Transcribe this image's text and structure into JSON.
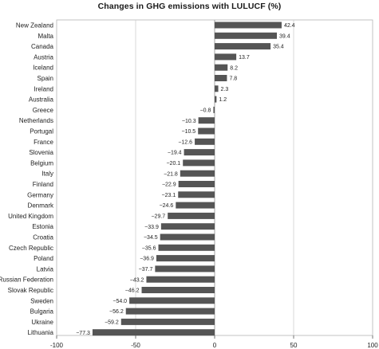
{
  "chart_data": {
    "type": "bar",
    "orientation": "horizontal",
    "title": "Changes in GHG emissions with LULUCF (%)",
    "xlabel": "",
    "ylabel": "",
    "xlim": [
      -100,
      100
    ],
    "xticks": [
      -100,
      -50,
      0,
      50,
      100
    ],
    "grid": true,
    "legend": "none",
    "bar_color": "#555555",
    "categories": [
      "New Zealand",
      "Malta",
      "Canada",
      "Austria",
      "Iceland",
      "Spain",
      "Ireland",
      "Australia",
      "Greece",
      "Netherlands",
      "Portugal",
      "France",
      "Slovenia",
      "Belgium",
      "Italy",
      "Finland",
      "Germany",
      "Denmark",
      "United Kingdom",
      "Estonia",
      "Croatia",
      "Czech Republic",
      "Poland",
      "Latvia",
      "Russian Federation",
      "Slovak Republic",
      "Sweden",
      "Bulgaria",
      "Ukraine",
      "Lithuania"
    ],
    "values": [
      42.4,
      39.4,
      35.4,
      13.7,
      8.2,
      7.8,
      2.3,
      1.2,
      -0.8,
      -10.3,
      -10.5,
      -12.6,
      -19.4,
      -20.1,
      -21.8,
      -22.9,
      -23.1,
      -24.6,
      -29.7,
      -33.9,
      -34.5,
      -35.6,
      -36.9,
      -37.7,
      -43.2,
      -46.2,
      -54.0,
      -56.2,
      -59.2,
      -77.3
    ],
    "value_labels": [
      "42.4",
      "39.4",
      "35.4",
      "13.7",
      "8.2",
      "7.8",
      "2.3",
      "1.2",
      "−0.8",
      "−10.3",
      "−10.5",
      "−12.6",
      "−19.4",
      "−20.1",
      "−21.8",
      "−22.9",
      "−23.1",
      "−24.6",
      "−29.7",
      "−33.9",
      "−34.5",
      "−35.6",
      "−36.9",
      "−37.7",
      "−43.2",
      "−46.2",
      "−54.0",
      "−56.2",
      "−59.2",
      "−77.3"
    ],
    "tick_labels": [
      "-100",
      "-50",
      "0",
      "50",
      "100"
    ]
  }
}
